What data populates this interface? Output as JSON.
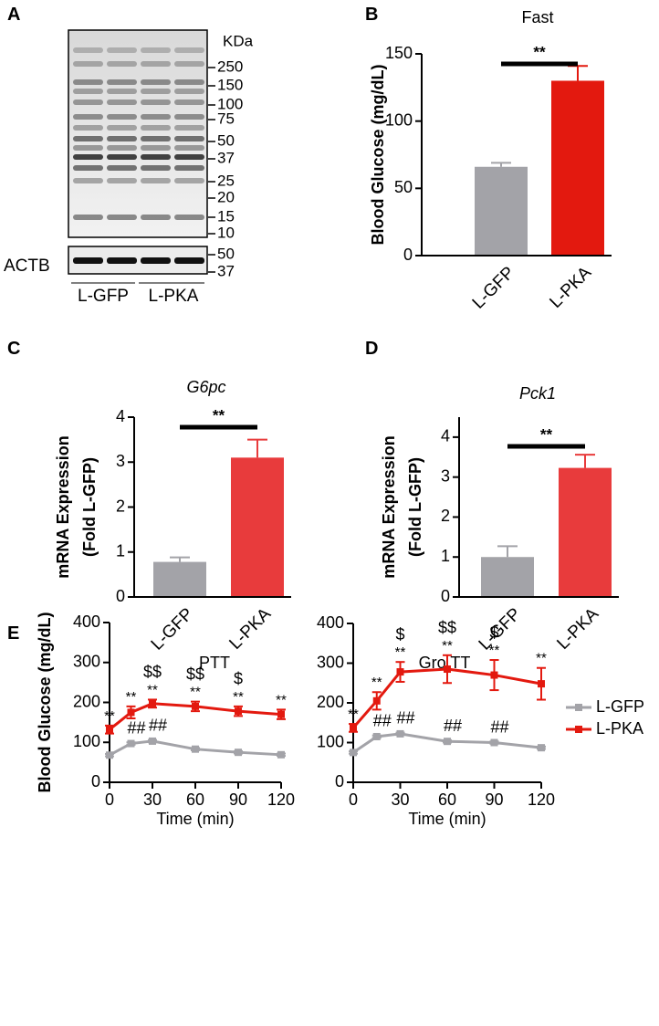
{
  "panels": [
    "A",
    "B",
    "C",
    "D",
    "E"
  ],
  "blot": {
    "unit": "KDa",
    "markers": [
      250,
      150,
      100,
      75,
      50,
      37,
      25,
      20,
      15,
      10
    ],
    "control": "ACTB",
    "control_markers": [
      50,
      37
    ],
    "groups": [
      "L-GFP",
      "L-PKA"
    ]
  },
  "chart_data": [
    {
      "type": "bar",
      "title": "Fast",
      "ylabel": [
        "Blood Glucose (mg/dL)"
      ],
      "categories": [
        "L-GFP",
        "L-PKA"
      ],
      "values": [
        66,
        130
      ],
      "errors": [
        3,
        11
      ],
      "colors": [
        "#a3a3a8",
        "#e3190f"
      ],
      "ylim": [
        0,
        150
      ],
      "yticks": [
        0,
        50,
        100,
        150
      ],
      "significance": "**"
    },
    {
      "type": "bar",
      "title": "G6pc",
      "title_style": "italic",
      "ylabel": [
        "mRNA Expression",
        "(Fold L-GFP)"
      ],
      "categories": [
        "L-GFP",
        "L-PKA"
      ],
      "values": [
        0.78,
        3.1
      ],
      "errors": [
        0.1,
        0.4
      ],
      "colors": [
        "#a3a3a8",
        "#e83b3c"
      ],
      "ylim": [
        0,
        4
      ],
      "yticks": [
        0,
        1,
        2,
        3,
        4
      ],
      "significance": "**"
    },
    {
      "type": "bar",
      "title": "Pck1",
      "title_style": "italic",
      "ylabel": [
        "mRNA Expression",
        "(Fold L-GFP)"
      ],
      "categories": [
        "L-GFP",
        "L-PKA"
      ],
      "values": [
        1.0,
        3.23
      ],
      "errors": [
        0.27,
        0.33
      ],
      "colors": [
        "#a3a3a8",
        "#e83b3c"
      ],
      "ylim": [
        0,
        4.5
      ],
      "yticks": [
        0,
        1,
        2,
        3,
        4
      ],
      "significance": "**"
    },
    {
      "type": "line",
      "title": "PTT",
      "ylabel": [
        "Blood Glucose (mg/dL)"
      ],
      "xlabel": "Time (min)",
      "x": [
        0,
        15,
        30,
        60,
        90,
        120
      ],
      "xlim": [
        0,
        120
      ],
      "xticks": [
        0,
        30,
        60,
        90,
        120
      ],
      "ylim": [
        0,
        400
      ],
      "yticks": [
        0,
        100,
        200,
        300,
        400
      ],
      "series": [
        {
          "name": "L-GFP",
          "color": "#a3a3a8",
          "values": [
            68,
            97,
            103,
            83,
            75,
            69
          ],
          "errors": [
            3,
            3,
            3,
            3,
            3,
            3
          ],
          "point_labels": [
            null,
            [
              "##"
            ],
            [
              "##"
            ],
            null,
            null,
            null
          ]
        },
        {
          "name": "L-PKA",
          "color": "#e3190f",
          "values": [
            132,
            175,
            197,
            190,
            178,
            170
          ],
          "errors": [
            10,
            15,
            10,
            12,
            12,
            12
          ],
          "point_labels": [
            [
              "**"
            ],
            [
              "**"
            ],
            [
              "**",
              "$$"
            ],
            [
              "**",
              "$$"
            ],
            [
              "**",
              "$"
            ],
            [
              "**"
            ]
          ]
        }
      ]
    },
    {
      "type": "line",
      "title": "Gro TT",
      "xlabel": "Time (min)",
      "x": [
        0,
        15,
        30,
        60,
        90,
        120
      ],
      "xlim": [
        0,
        120
      ],
      "xticks": [
        0,
        30,
        60,
        90,
        120
      ],
      "ylim": [
        0,
        400
      ],
      "yticks": [
        0,
        100,
        200,
        300,
        400
      ],
      "legend": "right",
      "series": [
        {
          "name": "L-GFP",
          "color": "#a3a3a8",
          "values": [
            75,
            115,
            122,
            103,
            100,
            87
          ],
          "errors": [
            3,
            3,
            3,
            3,
            3,
            3
          ],
          "point_labels": [
            null,
            [
              "##"
            ],
            [
              "##"
            ],
            [
              "##"
            ],
            [
              "##"
            ],
            null
          ]
        },
        {
          "name": "L-PKA",
          "color": "#e3190f",
          "values": [
            137,
            205,
            278,
            285,
            270,
            248
          ],
          "errors": [
            10,
            22,
            25,
            35,
            38,
            40
          ],
          "point_labels": [
            [
              "**"
            ],
            [
              "**"
            ],
            [
              "**",
              "$"
            ],
            [
              "**",
              "$$"
            ],
            [
              "**",
              "$"
            ],
            [
              "**"
            ]
          ]
        }
      ]
    }
  ]
}
